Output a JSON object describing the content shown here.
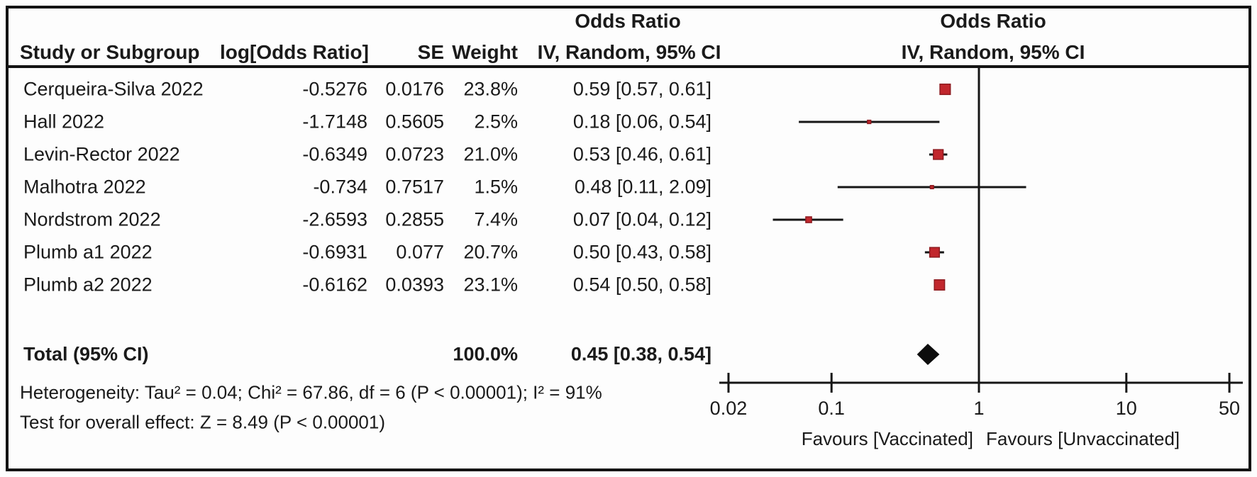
{
  "headers": {
    "effect_left_title": "Odds Ratio",
    "effect_right_title": "Odds Ratio",
    "study": "Study or Subgroup",
    "log_or": "log[Odds Ratio]",
    "se": "SE",
    "weight": "Weight",
    "method_left": "IV, Random, 95% CI",
    "method_right": "IV, Random, 95% CI"
  },
  "footer": {
    "heterogeneity": "Heterogeneity: Tau² = 0.04; Chi² = 67.86, df = 6 (P < 0.00001); I² = 91%",
    "overall_effect": "Test for overall effect: Z = 8.49 (P < 0.00001)"
  },
  "chart_data": {
    "type": "forest",
    "x_scale": "log",
    "xlim": [
      0.02,
      50
    ],
    "x_ticks": [
      0.02,
      0.1,
      1,
      10,
      50
    ],
    "null_line_at": 1,
    "marker_color": "#c1272d",
    "marker_edge_color": "#8e1b20",
    "diamond_color": "#0d0d0d",
    "x_axis_labels": {
      "left": "Favours [Vaccinated]",
      "right": "Favours [Unvaccinated]"
    },
    "studies": [
      {
        "name": "Cerqueira-Silva 2022",
        "log_or": "-0.5276",
        "se": "0.0176",
        "weight": "23.8%",
        "weight_value": 23.8,
        "or": 0.59,
        "ci_low": 0.57,
        "ci_high": 0.61,
        "ci_text": "0.59 [0.57, 0.61]"
      },
      {
        "name": "Hall 2022",
        "log_or": "-1.7148",
        "se": "0.5605",
        "weight": "2.5%",
        "weight_value": 2.5,
        "or": 0.18,
        "ci_low": 0.06,
        "ci_high": 0.54,
        "ci_text": "0.18 [0.06, 0.54]"
      },
      {
        "name": "Levin-Rector 2022",
        "log_or": "-0.6349",
        "se": "0.0723",
        "weight": "21.0%",
        "weight_value": 21.0,
        "or": 0.53,
        "ci_low": 0.46,
        "ci_high": 0.61,
        "ci_text": "0.53 [0.46, 0.61]"
      },
      {
        "name": "Malhotra 2022",
        "log_or": "-0.734",
        "se": "0.7517",
        "weight": "1.5%",
        "weight_value": 1.5,
        "or": 0.48,
        "ci_low": 0.11,
        "ci_high": 2.09,
        "ci_text": "0.48 [0.11, 2.09]"
      },
      {
        "name": "Nordstrom 2022",
        "log_or": "-2.6593",
        "se": "0.2855",
        "weight": "7.4%",
        "weight_value": 7.4,
        "or": 0.07,
        "ci_low": 0.04,
        "ci_high": 0.12,
        "ci_text": "0.07 [0.04, 0.12]"
      },
      {
        "name": "Plumb a1 2022",
        "log_or": "-0.6931",
        "se": "0.077",
        "weight": "20.7%",
        "weight_value": 20.7,
        "or": 0.5,
        "ci_low": 0.43,
        "ci_high": 0.58,
        "ci_text": "0.50 [0.43, 0.58]"
      },
      {
        "name": "Plumb a2 2022",
        "log_or": "-0.6162",
        "se": "0.0393",
        "weight": "23.1%",
        "weight_value": 23.1,
        "or": 0.54,
        "ci_low": 0.5,
        "ci_high": 0.58,
        "ci_text": "0.54 [0.50, 0.58]"
      }
    ],
    "total": {
      "name": "Total (95% CI)",
      "weight": "100.0%",
      "weight_value": 100.0,
      "or": 0.45,
      "ci_low": 0.38,
      "ci_high": 0.54,
      "ci_text": "0.45 [0.38, 0.54]"
    }
  }
}
